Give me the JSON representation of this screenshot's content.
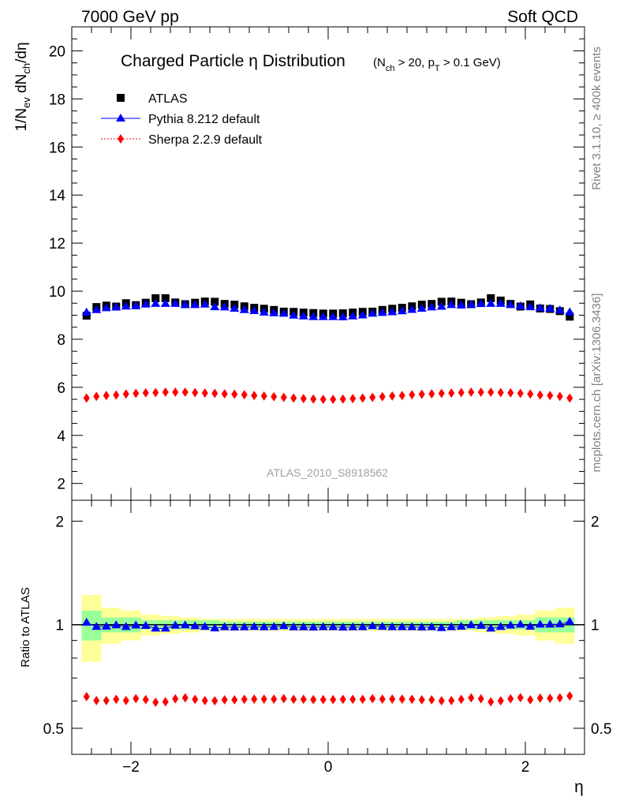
{
  "header": {
    "left": "7000 GeV pp",
    "right": "Soft QCD"
  },
  "side_labels": {
    "rivet": "Rivet 3.1.10, ≥ 400k events",
    "mcplots": "mcplots.cern.ch [arXiv:1306.3436]"
  },
  "chart_data": [
    {
      "type": "scatter",
      "title_main": "Charged Particle η Distribution",
      "title_cut": "(N_ch > 20, p_T > 0.1 GeV)",
      "watermark": "ATLAS_2010_S8918562",
      "ylabel": "1/N_ev dN_ch/dη",
      "xlim": [
        -2.6,
        2.6
      ],
      "ylim": [
        1.3,
        21.0
      ],
      "yticks": [
        2,
        4,
        6,
        8,
        10,
        12,
        14,
        16,
        18,
        20
      ],
      "legend_position": "top-left",
      "legend": [
        "ATLAS",
        "Pythia 8.212 default",
        "Sherpa 2.2.9 default"
      ],
      "x": [
        -2.45,
        -2.35,
        -2.25,
        -2.15,
        -2.05,
        -1.95,
        -1.85,
        -1.75,
        -1.65,
        -1.55,
        -1.45,
        -1.35,
        -1.25,
        -1.15,
        -1.05,
        -0.95,
        -0.85,
        -0.75,
        -0.65,
        -0.55,
        -0.45,
        -0.35,
        -0.25,
        -0.15,
        -0.05,
        0.05,
        0.15,
        0.25,
        0.35,
        0.45,
        0.55,
        0.65,
        0.75,
        0.85,
        0.95,
        1.05,
        1.15,
        1.25,
        1.35,
        1.45,
        1.55,
        1.65,
        1.75,
        1.85,
        1.95,
        2.05,
        2.15,
        2.25,
        2.35,
        2.45
      ],
      "series": [
        {
          "name": "ATLAS",
          "color": "#000000",
          "marker": "square",
          "values": [
            8.98,
            9.34,
            9.4,
            9.36,
            9.5,
            9.42,
            9.52,
            9.71,
            9.71,
            9.53,
            9.46,
            9.52,
            9.57,
            9.56,
            9.47,
            9.44,
            9.37,
            9.31,
            9.27,
            9.22,
            9.15,
            9.14,
            9.11,
            9.09,
            9.07,
            9.07,
            9.08,
            9.11,
            9.14,
            9.15,
            9.22,
            9.27,
            9.31,
            9.37,
            9.44,
            9.47,
            9.56,
            9.57,
            9.52,
            9.46,
            9.53,
            9.71,
            9.61,
            9.47,
            9.36,
            9.45,
            9.28,
            9.26,
            9.17,
            8.94
          ]
        },
        {
          "name": "Pythia 8.212 default",
          "color": "#0000ff",
          "marker": "triangle",
          "values": [
            9.12,
            9.22,
            9.3,
            9.33,
            9.37,
            9.38,
            9.45,
            9.48,
            9.48,
            9.48,
            9.43,
            9.43,
            9.45,
            9.34,
            9.33,
            9.28,
            9.22,
            9.18,
            9.12,
            9.09,
            9.07,
            8.99,
            8.96,
            8.93,
            8.93,
            8.93,
            8.92,
            8.96,
            9.0,
            9.07,
            9.1,
            9.13,
            9.17,
            9.23,
            9.28,
            9.33,
            9.36,
            9.43,
            9.41,
            9.44,
            9.47,
            9.48,
            9.48,
            9.43,
            9.38,
            9.34,
            9.3,
            9.28,
            9.21,
            9.13
          ]
        },
        {
          "name": "Sherpa 2.2.9 default",
          "color": "#ff0000",
          "marker": "diamond",
          "values": [
            5.55,
            5.62,
            5.66,
            5.68,
            5.72,
            5.75,
            5.77,
            5.78,
            5.8,
            5.8,
            5.8,
            5.78,
            5.76,
            5.75,
            5.73,
            5.71,
            5.69,
            5.66,
            5.64,
            5.61,
            5.58,
            5.55,
            5.53,
            5.51,
            5.5,
            5.5,
            5.51,
            5.53,
            5.55,
            5.58,
            5.61,
            5.64,
            5.66,
            5.69,
            5.71,
            5.73,
            5.75,
            5.76,
            5.78,
            5.8,
            5.8,
            5.8,
            5.78,
            5.77,
            5.75,
            5.72,
            5.68,
            5.66,
            5.62,
            5.55
          ]
        }
      ]
    },
    {
      "type": "scatter",
      "ylabel": "Ratio to ATLAS",
      "xlabel": "η",
      "y_scale": "log",
      "xlim": [
        -2.6,
        2.6
      ],
      "ylim": [
        0.42,
        2.3
      ],
      "yticks": [
        0.5,
        1,
        2
      ],
      "xticks": [
        -2,
        0,
        2
      ],
      "reference_line": 1,
      "band_inner_color": "#99ff99",
      "band_outer_color": "#ffff99",
      "band_edges": [
        -2.5,
        -2.3,
        -2.1,
        -1.9,
        -1.7,
        -1.5,
        -1.3,
        -1.1,
        -0.9,
        -0.7,
        -0.5,
        -0.3,
        -0.1,
        0.1,
        0.3,
        0.5,
        0.7,
        0.9,
        1.1,
        1.3,
        1.5,
        1.7,
        1.9,
        2.1,
        2.3,
        2.5
      ],
      "band_inner": [
        0.1,
        0.05,
        0.05,
        0.03,
        0.03,
        0.03,
        0.03,
        0.02,
        0.02,
        0.02,
        0.02,
        0.02,
        0.02,
        0.02,
        0.02,
        0.02,
        0.02,
        0.02,
        0.02,
        0.03,
        0.03,
        0.03,
        0.03,
        0.05,
        0.05,
        0.1
      ],
      "band_outer": [
        0.22,
        0.12,
        0.1,
        0.07,
        0.06,
        0.05,
        0.04,
        0.04,
        0.04,
        0.04,
        0.04,
        0.04,
        0.04,
        0.04,
        0.04,
        0.04,
        0.04,
        0.04,
        0.04,
        0.04,
        0.05,
        0.06,
        0.07,
        0.1,
        0.12,
        0.22
      ],
      "series": [
        {
          "name": "Pythia 8.212 default",
          "color": "#0000ff",
          "marker": "triangle",
          "values": [
            1.015,
            0.987,
            0.989,
            0.997,
            0.986,
            0.996,
            0.993,
            0.976,
            0.976,
            0.995,
            0.997,
            0.991,
            0.987,
            0.977,
            0.985,
            0.983,
            0.984,
            0.986,
            0.984,
            0.986,
            0.991,
            0.984,
            0.984,
            0.982,
            0.985,
            0.985,
            0.982,
            0.984,
            0.985,
            0.991,
            0.987,
            0.985,
            0.985,
            0.985,
            0.983,
            0.985,
            0.979,
            0.985,
            0.988,
            0.998,
            0.994,
            0.976,
            0.986,
            0.996,
            1.002,
            0.988,
            1.002,
            1.002,
            1.004,
            1.021
          ]
        },
        {
          "name": "Sherpa 2.2.9 default",
          "color": "#ff0000",
          "marker": "diamond",
          "values": [
            0.618,
            0.602,
            0.602,
            0.607,
            0.602,
            0.61,
            0.606,
            0.595,
            0.597,
            0.609,
            0.613,
            0.607,
            0.602,
            0.601,
            0.605,
            0.605,
            0.607,
            0.608,
            0.608,
            0.608,
            0.61,
            0.607,
            0.607,
            0.606,
            0.606,
            0.606,
            0.607,
            0.607,
            0.607,
            0.61,
            0.608,
            0.608,
            0.608,
            0.607,
            0.605,
            0.605,
            0.601,
            0.602,
            0.607,
            0.613,
            0.609,
            0.597,
            0.601,
            0.609,
            0.614,
            0.605,
            0.612,
            0.611,
            0.613,
            0.621
          ]
        }
      ]
    }
  ]
}
